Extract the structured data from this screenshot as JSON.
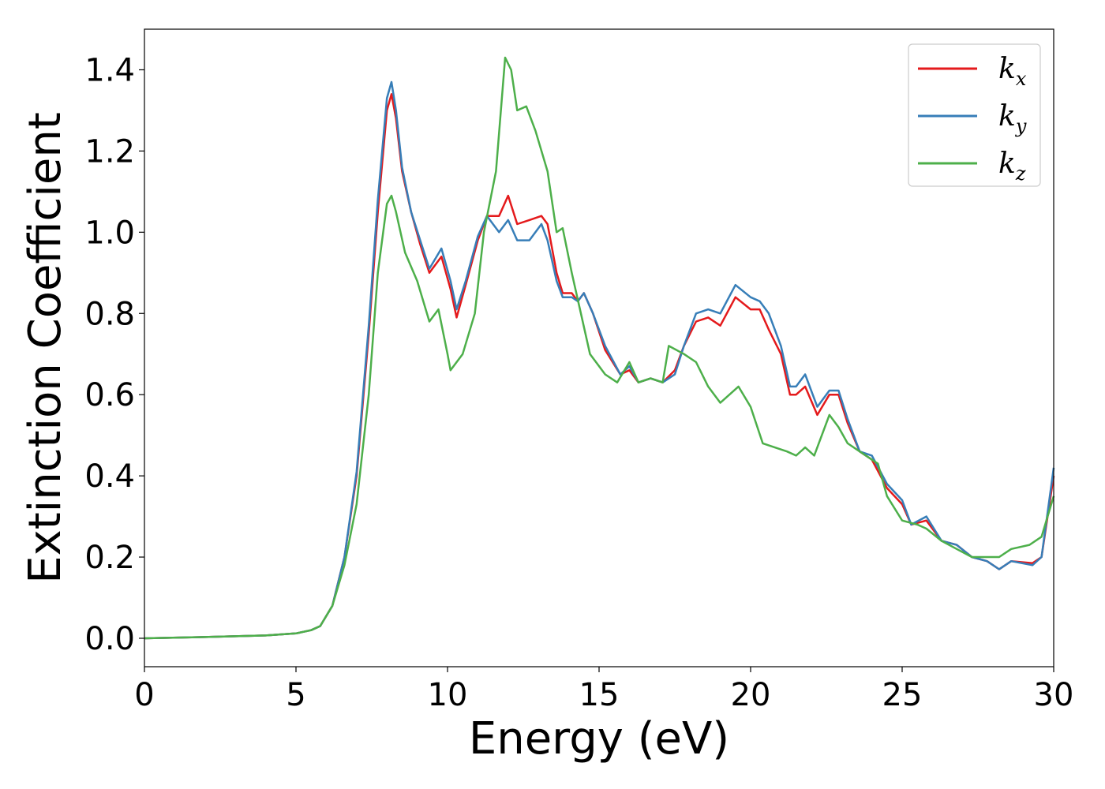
{
  "chart_data": {
    "type": "line",
    "xlabel": "Energy (eV)",
    "ylabel": "Extinction Coefficient",
    "xlim": [
      0,
      30
    ],
    "ylim": [
      -0.07,
      1.5
    ],
    "xticks": [
      0,
      5,
      10,
      15,
      20,
      25,
      30
    ],
    "yticks": [
      0.0,
      0.2,
      0.4,
      0.6,
      0.8,
      1.0,
      1.2,
      1.4
    ],
    "xtick_labels": [
      "0",
      "5",
      "10",
      "15",
      "20",
      "25",
      "30"
    ],
    "ytick_labels": [
      "0.0",
      "0.2",
      "0.4",
      "0.6",
      "0.8",
      "1.0",
      "1.2",
      "1.4"
    ],
    "grid": false,
    "legend_position": "top-right",
    "series": [
      {
        "name": "k",
        "subscript": "x",
        "color": "#e41a1c",
        "points": [
          [
            0,
            0
          ],
          [
            2,
            0.003
          ],
          [
            4,
            0.007
          ],
          [
            5,
            0.012
          ],
          [
            5.5,
            0.02
          ],
          [
            5.8,
            0.03
          ],
          [
            6.2,
            0.08
          ],
          [
            6.6,
            0.2
          ],
          [
            7,
            0.4
          ],
          [
            7.4,
            0.75
          ],
          [
            7.7,
            1.05
          ],
          [
            8,
            1.3
          ],
          [
            8.15,
            1.34
          ],
          [
            8.3,
            1.28
          ],
          [
            8.5,
            1.15
          ],
          [
            8.8,
            1.05
          ],
          [
            9.1,
            0.97
          ],
          [
            9.4,
            0.9
          ],
          [
            9.8,
            0.94
          ],
          [
            10.1,
            0.86
          ],
          [
            10.3,
            0.79
          ],
          [
            10.6,
            0.87
          ],
          [
            11,
            0.98
          ],
          [
            11.3,
            1.04
          ],
          [
            11.7,
            1.04
          ],
          [
            12,
            1.09
          ],
          [
            12.3,
            1.02
          ],
          [
            12.7,
            1.03
          ],
          [
            13.1,
            1.04
          ],
          [
            13.3,
            1.02
          ],
          [
            13.6,
            0.9
          ],
          [
            13.8,
            0.85
          ],
          [
            14.1,
            0.85
          ],
          [
            14.3,
            0.83
          ],
          [
            14.5,
            0.85
          ],
          [
            14.8,
            0.8
          ],
          [
            15.2,
            0.71
          ],
          [
            15.7,
            0.65
          ],
          [
            16,
            0.66
          ],
          [
            16.3,
            0.63
          ],
          [
            16.7,
            0.64
          ],
          [
            17.1,
            0.63
          ],
          [
            17.5,
            0.66
          ],
          [
            17.8,
            0.72
          ],
          [
            18.2,
            0.78
          ],
          [
            18.6,
            0.79
          ],
          [
            19,
            0.77
          ],
          [
            19.5,
            0.84
          ],
          [
            20,
            0.81
          ],
          [
            20.3,
            0.81
          ],
          [
            20.6,
            0.76
          ],
          [
            21,
            0.7
          ],
          [
            21.3,
            0.6
          ],
          [
            21.5,
            0.6
          ],
          [
            21.8,
            0.62
          ],
          [
            22.2,
            0.55
          ],
          [
            22.6,
            0.6
          ],
          [
            22.9,
            0.6
          ],
          [
            23.2,
            0.53
          ],
          [
            23.6,
            0.46
          ],
          [
            24,
            0.44
          ],
          [
            24.5,
            0.37
          ],
          [
            25,
            0.33
          ],
          [
            25.3,
            0.28
          ],
          [
            25.8,
            0.29
          ],
          [
            26.3,
            0.24
          ],
          [
            26.8,
            0.23
          ],
          [
            27.3,
            0.2
          ],
          [
            27.8,
            0.19
          ],
          [
            28.2,
            0.17
          ],
          [
            28.6,
            0.19
          ],
          [
            29.3,
            0.185
          ],
          [
            29.6,
            0.2
          ],
          [
            30,
            0.4
          ]
        ]
      },
      {
        "name": "k",
        "subscript": "y",
        "color": "#377eb8",
        "points": [
          [
            0,
            0
          ],
          [
            2,
            0.003
          ],
          [
            4,
            0.007
          ],
          [
            5,
            0.012
          ],
          [
            5.5,
            0.02
          ],
          [
            5.8,
            0.03
          ],
          [
            6.2,
            0.08
          ],
          [
            6.6,
            0.2
          ],
          [
            7,
            0.41
          ],
          [
            7.4,
            0.77
          ],
          [
            7.7,
            1.08
          ],
          [
            8,
            1.33
          ],
          [
            8.15,
            1.37
          ],
          [
            8.3,
            1.3
          ],
          [
            8.5,
            1.16
          ],
          [
            8.8,
            1.05
          ],
          [
            9.1,
            0.98
          ],
          [
            9.4,
            0.91
          ],
          [
            9.8,
            0.96
          ],
          [
            10.1,
            0.88
          ],
          [
            10.3,
            0.81
          ],
          [
            10.6,
            0.88
          ],
          [
            11,
            0.99
          ],
          [
            11.3,
            1.04
          ],
          [
            11.7,
            1.0
          ],
          [
            12,
            1.03
          ],
          [
            12.3,
            0.98
          ],
          [
            12.7,
            0.98
          ],
          [
            13.1,
            1.02
          ],
          [
            13.3,
            0.98
          ],
          [
            13.6,
            0.88
          ],
          [
            13.8,
            0.84
          ],
          [
            14.1,
            0.84
          ],
          [
            14.3,
            0.83
          ],
          [
            14.5,
            0.85
          ],
          [
            14.8,
            0.8
          ],
          [
            15.2,
            0.72
          ],
          [
            15.7,
            0.65
          ],
          [
            16,
            0.67
          ],
          [
            16.3,
            0.63
          ],
          [
            16.7,
            0.64
          ],
          [
            17.1,
            0.63
          ],
          [
            17.5,
            0.65
          ],
          [
            17.8,
            0.72
          ],
          [
            18.2,
            0.8
          ],
          [
            18.6,
            0.81
          ],
          [
            19,
            0.8
          ],
          [
            19.5,
            0.87
          ],
          [
            20,
            0.84
          ],
          [
            20.3,
            0.83
          ],
          [
            20.6,
            0.8
          ],
          [
            21,
            0.72
          ],
          [
            21.3,
            0.62
          ],
          [
            21.5,
            0.62
          ],
          [
            21.8,
            0.65
          ],
          [
            22.2,
            0.57
          ],
          [
            22.6,
            0.61
          ],
          [
            22.9,
            0.61
          ],
          [
            23.2,
            0.54
          ],
          [
            23.6,
            0.46
          ],
          [
            24,
            0.45
          ],
          [
            24.5,
            0.38
          ],
          [
            25,
            0.34
          ],
          [
            25.3,
            0.28
          ],
          [
            25.8,
            0.3
          ],
          [
            26.3,
            0.24
          ],
          [
            26.8,
            0.23
          ],
          [
            27.3,
            0.2
          ],
          [
            27.8,
            0.19
          ],
          [
            28.2,
            0.17
          ],
          [
            28.6,
            0.19
          ],
          [
            29.3,
            0.18
          ],
          [
            29.6,
            0.2
          ],
          [
            30,
            0.42
          ]
        ]
      },
      {
        "name": "k",
        "subscript": "z",
        "color": "#4daf4a",
        "points": [
          [
            0,
            0
          ],
          [
            2,
            0.003
          ],
          [
            4,
            0.007
          ],
          [
            5,
            0.012
          ],
          [
            5.5,
            0.02
          ],
          [
            5.8,
            0.03
          ],
          [
            6.2,
            0.08
          ],
          [
            6.6,
            0.18
          ],
          [
            7,
            0.33
          ],
          [
            7.4,
            0.6
          ],
          [
            7.7,
            0.9
          ],
          [
            8,
            1.07
          ],
          [
            8.15,
            1.09
          ],
          [
            8.3,
            1.05
          ],
          [
            8.6,
            0.95
          ],
          [
            9,
            0.88
          ],
          [
            9.4,
            0.78
          ],
          [
            9.7,
            0.81
          ],
          [
            10,
            0.7
          ],
          [
            10.1,
            0.66
          ],
          [
            10.5,
            0.7
          ],
          [
            10.9,
            0.8
          ],
          [
            11.2,
            1.0
          ],
          [
            11.6,
            1.15
          ],
          [
            11.9,
            1.43
          ],
          [
            12.1,
            1.4
          ],
          [
            12.3,
            1.3
          ],
          [
            12.6,
            1.31
          ],
          [
            12.9,
            1.25
          ],
          [
            13.3,
            1.15
          ],
          [
            13.6,
            1.0
          ],
          [
            13.8,
            1.01
          ],
          [
            14.1,
            0.9
          ],
          [
            14.4,
            0.8
          ],
          [
            14.7,
            0.7
          ],
          [
            15.2,
            0.65
          ],
          [
            15.6,
            0.63
          ],
          [
            16,
            0.68
          ],
          [
            16.3,
            0.63
          ],
          [
            16.7,
            0.64
          ],
          [
            17.1,
            0.63
          ],
          [
            17.3,
            0.72
          ],
          [
            17.8,
            0.7
          ],
          [
            18.2,
            0.68
          ],
          [
            18.6,
            0.62
          ],
          [
            19,
            0.58
          ],
          [
            19.6,
            0.62
          ],
          [
            20,
            0.57
          ],
          [
            20.4,
            0.48
          ],
          [
            20.8,
            0.47
          ],
          [
            21.2,
            0.46
          ],
          [
            21.5,
            0.45
          ],
          [
            21.8,
            0.47
          ],
          [
            22.1,
            0.45
          ],
          [
            22.6,
            0.55
          ],
          [
            22.9,
            0.52
          ],
          [
            23.2,
            0.48
          ],
          [
            23.6,
            0.46
          ],
          [
            24.2,
            0.43
          ],
          [
            24.5,
            0.35
          ],
          [
            25,
            0.29
          ],
          [
            25.5,
            0.28
          ],
          [
            25.8,
            0.27
          ],
          [
            26.3,
            0.24
          ],
          [
            26.8,
            0.22
          ],
          [
            27.3,
            0.2
          ],
          [
            27.8,
            0.2
          ],
          [
            28.2,
            0.2
          ],
          [
            28.6,
            0.22
          ],
          [
            29.2,
            0.23
          ],
          [
            29.6,
            0.25
          ],
          [
            30,
            0.35
          ]
        ]
      }
    ]
  }
}
